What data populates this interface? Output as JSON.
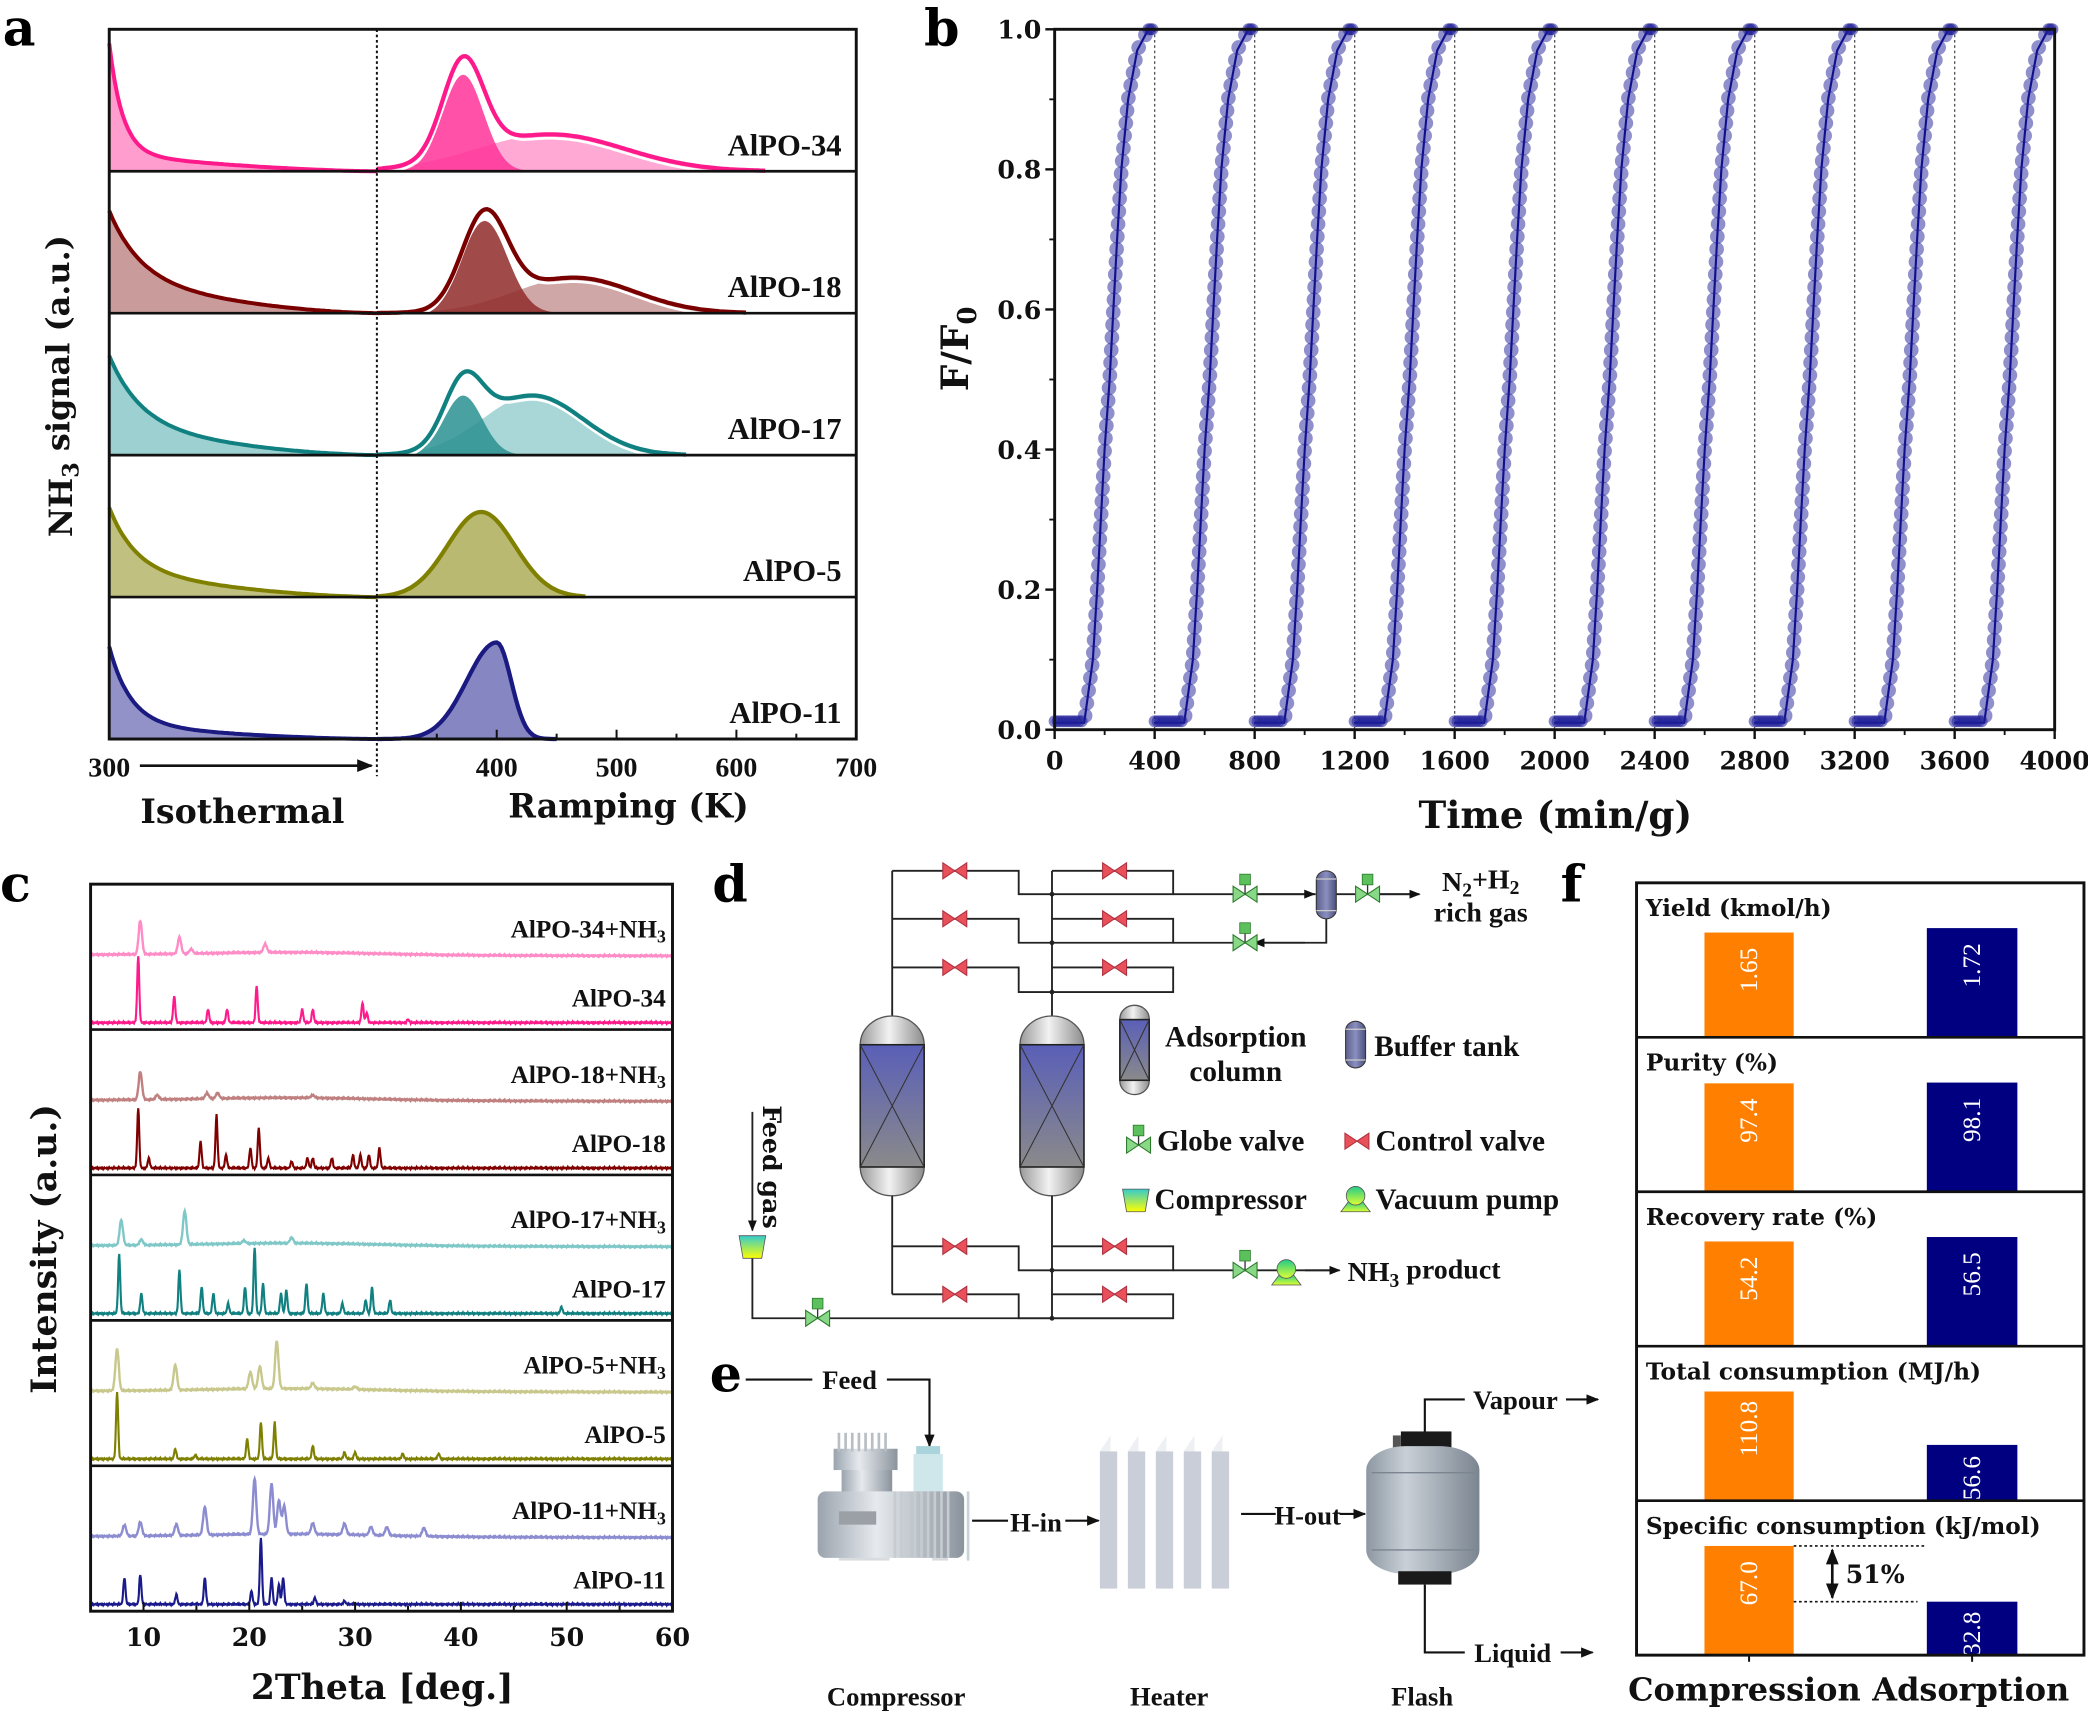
{
  "panel_letters": {
    "a": "a",
    "b": "b",
    "c": "c",
    "d": "d",
    "e": "e",
    "f": "f"
  },
  "chart_data": [
    {
      "panel": "a",
      "type": "area",
      "ylabel": [
        "NH",
        "3",
        " signal (a.u.)"
      ],
      "xlabel_left": "Isothermal",
      "xlabel": "Ramping (K)",
      "xlim": [
        300,
        700
      ],
      "xticks": [
        "300",
        "400",
        "500",
        "600",
        "700"
      ],
      "series": [
        {
          "name": "AlPO-34",
          "color": "#ff1a8c",
          "fills": [
            "#ff3399",
            "#ff8cc6"
          ],
          "peaks": [
            {
              "center": 372,
              "sigma": 17,
              "height": 0.68
            },
            {
              "center": 445,
              "sigma": 62,
              "height": 0.26
            }
          ]
        },
        {
          "name": "AlPO-18",
          "color": "#7a0000",
          "fills": [
            "#8f2a2a",
            "#c08a8a"
          ],
          "peaks": [
            {
              "center": 390,
              "sigma": 19,
              "height": 0.65
            },
            {
              "center": 465,
              "sigma": 50,
              "height": 0.25
            }
          ]
        },
        {
          "name": "AlPO-17",
          "color": "#118080",
          "fills": [
            "#2a9090",
            "#8cc8c8"
          ],
          "peaks": [
            {
              "center": 372,
              "sigma": 16,
              "height": 0.42
            },
            {
              "center": 430,
              "sigma": 42,
              "height": 0.42
            }
          ]
        },
        {
          "name": "AlPO-5",
          "color": "#808000",
          "fills": [
            "#b5b56a"
          ],
          "peaks": [
            {
              "center": 387,
              "sigma": 28,
              "height": 0.6
            }
          ]
        },
        {
          "name": "AlPO-11",
          "color": "#1a1a80",
          "fills": [
            "#7f7fbf"
          ],
          "peaks": [
            {
              "center": 400,
              "sigma": 25,
              "sigma_right": 12,
              "height": 0.68
            }
          ]
        }
      ]
    },
    {
      "panel": "b",
      "type": "scatter",
      "xlabel": "Time (min/g)",
      "ylabel": [
        "F/F",
        "0"
      ],
      "xlim": [
        0,
        4000
      ],
      "ylim": [
        0,
        1.0
      ],
      "xticks": [
        "0",
        "400",
        "800",
        "1200",
        "1600",
        "2000",
        "2400",
        "2800",
        "3200",
        "3600",
        "4000"
      ],
      "yticks": [
        "0.0",
        "0.2",
        "0.4",
        "0.6",
        "0.8",
        "1.0"
      ],
      "color": "#1f1f99",
      "cycle_dividers": [
        400,
        800,
        1200,
        1600,
        2000,
        2400,
        2800,
        3200,
        3600
      ],
      "y": [
        0.01,
        0.01,
        0.1,
        0.2,
        0.3,
        0.4,
        0.5,
        0.6,
        0.7,
        0.8,
        0.9,
        0.97,
        1.0,
        1.0
      ],
      "cycles": [
        [
          0,
          118,
          153,
          170,
          185,
          200,
          220,
          235,
          250,
          267,
          294,
          330,
          375,
          395
        ],
        [
          400,
          518,
          553,
          570,
          585,
          600,
          620,
          635,
          650,
          667,
          694,
          730,
          775,
          795
        ],
        [
          800,
          918,
          953,
          970,
          985,
          1000,
          1020,
          1035,
          1050,
          1067,
          1094,
          1130,
          1175,
          1195
        ],
        [
          1200,
          1318,
          1353,
          1370,
          1385,
          1400,
          1420,
          1435,
          1450,
          1467,
          1494,
          1530,
          1575,
          1595
        ],
        [
          1600,
          1718,
          1753,
          1770,
          1785,
          1800,
          1820,
          1835,
          1850,
          1867,
          1894,
          1930,
          1975,
          1995
        ],
        [
          2000,
          2118,
          2153,
          2170,
          2185,
          2200,
          2220,
          2235,
          2250,
          2267,
          2294,
          2330,
          2375,
          2395
        ],
        [
          2400,
          2518,
          2553,
          2570,
          2585,
          2600,
          2620,
          2635,
          2650,
          2667,
          2694,
          2730,
          2775,
          2795
        ],
        [
          2800,
          2918,
          2953,
          2970,
          2985,
          3000,
          3020,
          3035,
          3050,
          3067,
          3094,
          3130,
          3175,
          3195
        ],
        [
          3200,
          3318,
          3353,
          3370,
          3385,
          3400,
          3420,
          3435,
          3450,
          3467,
          3494,
          3530,
          3575,
          3595
        ],
        [
          3600,
          3718,
          3753,
          3770,
          3785,
          3800,
          3820,
          3835,
          3850,
          3867,
          3894,
          3930,
          3975,
          3995
        ]
      ]
    },
    {
      "panel": "c",
      "type": "line",
      "xlabel": "2Theta [deg.]",
      "ylabel": "Intensity (a.u.)",
      "xlim": [
        5,
        60
      ],
      "xticks": [
        "10",
        "20",
        "30",
        "40",
        "50",
        "60"
      ],
      "series": [
        {
          "label": [
            "AlPO-34+NH",
            "3"
          ],
          "color": "#ff8cc6",
          "nh3": true,
          "peaks": [
            [
              9.7,
              0.6
            ],
            [
              13.4,
              0.3
            ],
            [
              14.5,
              0.08
            ],
            [
              21.5,
              0.15
            ]
          ]
        },
        {
          "label": [
            "AlPO-34"
          ],
          "color": "#ff1a8c",
          "nh3": false,
          "peaks": [
            [
              9.5,
              1
            ],
            [
              12.9,
              0.4
            ],
            [
              16.1,
              0.2
            ],
            [
              17.9,
              0.2
            ],
            [
              20.7,
              0.55
            ],
            [
              25.0,
              0.2
            ],
            [
              26.0,
              0.2
            ],
            [
              30.7,
              0.3
            ],
            [
              31.1,
              0.15
            ],
            [
              35,
              0.05
            ]
          ]
        },
        {
          "label": [
            "AlPO-18+NH",
            "3"
          ],
          "color": "#c08080",
          "nh3": true,
          "peaks": [
            [
              9.7,
              0.5
            ],
            [
              11.3,
              0.08
            ],
            [
              16.0,
              0.1
            ],
            [
              17.0,
              0.1
            ],
            [
              26,
              0.05
            ]
          ]
        },
        {
          "label": [
            "AlPO-18"
          ],
          "color": "#800000",
          "nh3": false,
          "peaks": [
            [
              9.5,
              0.9
            ],
            [
              10.5,
              0.15
            ],
            [
              15.4,
              0.4
            ],
            [
              16.9,
              0.8
            ],
            [
              17.8,
              0.2
            ],
            [
              20.1,
              0.3
            ],
            [
              20.9,
              0.6
            ],
            [
              21.8,
              0.15
            ],
            [
              24,
              0.1
            ],
            [
              25.5,
              0.15
            ],
            [
              26.0,
              0.15
            ],
            [
              27.8,
              0.15
            ],
            [
              29.8,
              0.2
            ],
            [
              30.5,
              0.2
            ],
            [
              31.3,
              0.2
            ],
            [
              32.3,
              0.3
            ]
          ]
        },
        {
          "label": [
            "AlPO-17+NH",
            "3"
          ],
          "color": "#80c8c8",
          "nh3": true,
          "peaks": [
            [
              7.9,
              0.45
            ],
            [
              9.8,
              0.1
            ],
            [
              13.9,
              0.6
            ],
            [
              19.5,
              0.05
            ],
            [
              24,
              0.1
            ]
          ]
        },
        {
          "label": [
            "AlPO-17"
          ],
          "color": "#118080",
          "nh3": false,
          "peaks": [
            [
              7.7,
              0.9
            ],
            [
              9.8,
              0.3
            ],
            [
              13.4,
              0.65
            ],
            [
              15.5,
              0.4
            ],
            [
              16.6,
              0.3
            ],
            [
              18.0,
              0.15
            ],
            [
              19.6,
              0.4
            ],
            [
              20.5,
              1
            ],
            [
              21.3,
              0.45
            ],
            [
              23.0,
              0.3
            ],
            [
              23.5,
              0.35
            ],
            [
              25.4,
              0.45
            ],
            [
              27.0,
              0.3
            ],
            [
              28.8,
              0.15
            ],
            [
              31.0,
              0.2
            ],
            [
              31.6,
              0.4
            ],
            [
              33.3,
              0.2
            ],
            [
              49.5,
              0.1
            ]
          ]
        },
        {
          "label": [
            "AlPO-5+NH",
            "3"
          ],
          "color": "#c8c88c",
          "nh3": true,
          "peaks": [
            [
              7.5,
              0.75
            ],
            [
              13.0,
              0.45
            ],
            [
              20.1,
              0.3
            ],
            [
              21.0,
              0.4
            ],
            [
              22.6,
              0.85
            ],
            [
              26.0,
              0.1
            ],
            [
              30,
              0.05
            ]
          ]
        },
        {
          "label": [
            "AlPO-5"
          ],
          "color": "#808000",
          "nh3": false,
          "peaks": [
            [
              7.5,
              1
            ],
            [
              13.0,
              0.15
            ],
            [
              14.9,
              0.06
            ],
            [
              19.8,
              0.3
            ],
            [
              21.1,
              0.55
            ],
            [
              22.4,
              0.55
            ],
            [
              26.0,
              0.2
            ],
            [
              29.0,
              0.1
            ],
            [
              30.0,
              0.1
            ],
            [
              34.5,
              0.08
            ],
            [
              37.9,
              0.08
            ]
          ]
        },
        {
          "label": [
            "AlPO-11+NH",
            "3"
          ],
          "color": "#8c8cd0",
          "nh3": true,
          "peaks": [
            [
              8.2,
              0.2
            ],
            [
              9.7,
              0.25
            ],
            [
              13.1,
              0.2
            ],
            [
              15.8,
              0.5
            ],
            [
              20.5,
              1
            ],
            [
              22.1,
              0.9
            ],
            [
              22.8,
              0.6
            ],
            [
              23.3,
              0.5
            ],
            [
              26.0,
              0.2
            ],
            [
              29.0,
              0.2
            ],
            [
              31.5,
              0.15
            ],
            [
              33.0,
              0.15
            ],
            [
              36.5,
              0.15
            ]
          ]
        },
        {
          "label": [
            "AlPO-11"
          ],
          "color": "#1a1a8c",
          "nh3": false,
          "peaks": [
            [
              8.2,
              0.4
            ],
            [
              9.7,
              0.45
            ],
            [
              13.1,
              0.15
            ],
            [
              15.8,
              0.4
            ],
            [
              20.2,
              0.2
            ],
            [
              21.1,
              1
            ],
            [
              22.1,
              0.4
            ],
            [
              22.8,
              0.3
            ],
            [
              23.2,
              0.4
            ],
            [
              26.2,
              0.1
            ],
            [
              29,
              0.05
            ]
          ]
        }
      ]
    },
    {
      "panel": "f",
      "type": "bar",
      "categories": [
        "Compression",
        "Adsorption"
      ],
      "colors": [
        "#ff8000",
        "#000080"
      ],
      "metrics": [
        {
          "title": "Yield (kmol/h)",
          "values": [
            1.65,
            1.72
          ],
          "labels": [
            "1.65",
            "1.72"
          ]
        },
        {
          "title": "Purity (%)",
          "values": [
            97.4,
            98.1
          ],
          "labels": [
            "97.4",
            "98.1"
          ]
        },
        {
          "title": "Recovery rate (%)",
          "values": [
            54.2,
            56.5
          ],
          "labels": [
            "54.2",
            "56.5"
          ]
        },
        {
          "title": "Total consumption (MJ/h)",
          "values": [
            110.8,
            56.6
          ],
          "labels": [
            "110.8",
            "56.6"
          ]
        },
        {
          "title": "Specific consumption (kJ/mol)",
          "values": [
            67.0,
            32.8
          ],
          "labels": [
            "67.0",
            "32.8"
          ]
        }
      ],
      "annotation": "51%"
    }
  ],
  "diagram_d": {
    "product_gas": [
      "N",
      "2",
      "+H",
      "2"
    ],
    "product_gas_line2": "rich gas",
    "feed": "Feed gas",
    "nh3_product": [
      "NH",
      "3",
      " product"
    ],
    "legend": {
      "adsorption_column_1": "Adsorption",
      "adsorption_column_2": "column",
      "buffer_tank": "Buffer tank",
      "globe_valve": "Globe valve",
      "control_valve": "Control valve",
      "compressor": "Compressor",
      "vacuum_pump": "Vacuum pump"
    }
  },
  "diagram_e": {
    "feed": "Feed",
    "h_in": "H-in",
    "h_out": "H-out",
    "vapour": "Vapour",
    "liquid": "Liquid",
    "compressor": "Compressor",
    "heater": "Heater",
    "flash": "Flash"
  }
}
